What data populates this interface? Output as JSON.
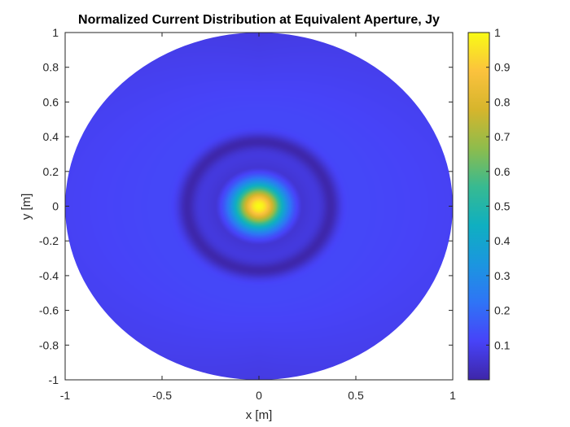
{
  "chart_data": {
    "type": "heatmap",
    "title": "Normalized Current Distribution at Equivalent Aperture, Jy",
    "xlabel": "x [m]",
    "ylabel": "y [m]",
    "xlim": [
      -1,
      1
    ],
    "ylim": [
      -1,
      1
    ],
    "x_ticks": [
      "-1",
      "-0.5",
      "0",
      "0.5",
      "1"
    ],
    "y_ticks": [
      "1",
      "0.8",
      "0.6",
      "0.4",
      "0.2",
      "0",
      "-0.2",
      "-0.4",
      "-0.6",
      "-0.8",
      "-1"
    ],
    "grid": false,
    "aperture": {
      "shape": "circle",
      "center": [
        0,
        0
      ],
      "radius_m": 1
    },
    "distribution": {
      "peak_value": 1,
      "peak_location": [
        0,
        0
      ],
      "main_lobe_half_width_m": 0.13,
      "null_ring_radius_m": 0.37,
      "sidelobe_level": 0.12,
      "edge_level": 0.08
    },
    "colorbar": {
      "colormap": "parula",
      "range": [
        0,
        1
      ],
      "ticks": [
        "1",
        "0.9",
        "0.8",
        "0.7",
        "0.6",
        "0.5",
        "0.4",
        "0.3",
        "0.2",
        "0.1"
      ],
      "stops": [
        "#3e26a8",
        "#4743f8",
        "#2f74f6",
        "#1b96df",
        "#0fafc1",
        "#37ba91",
        "#8ebc4c",
        "#d6b52c",
        "#fbc23d",
        "#f9fb15"
      ]
    }
  }
}
